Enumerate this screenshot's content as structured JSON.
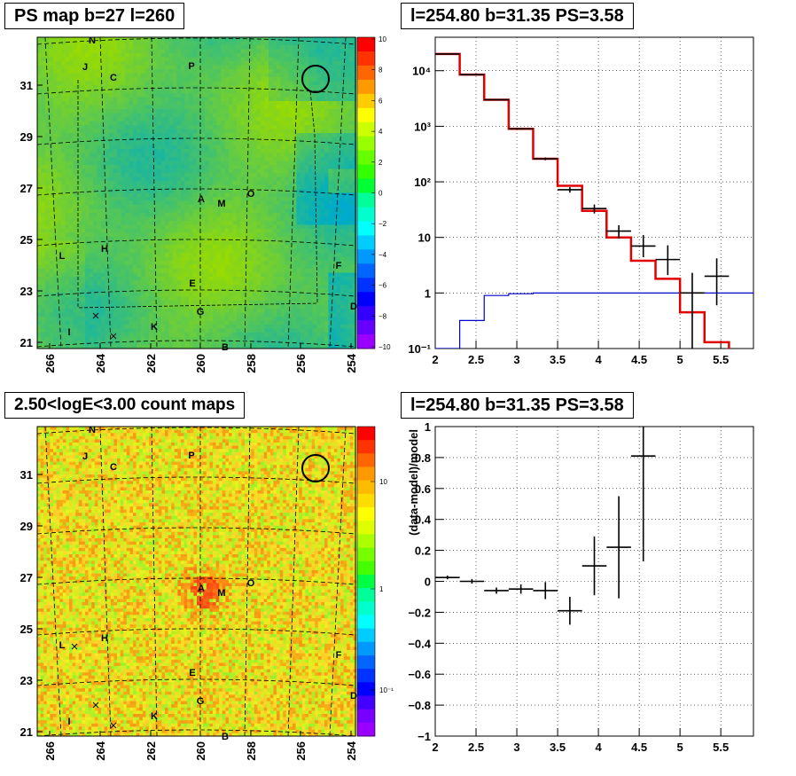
{
  "colors": {
    "fit_red": "#e00000",
    "background_blue": "#0000cc",
    "data_black": "#000000"
  },
  "chart_data": [
    {
      "type": "heatmap",
      "title": "PS map b=27 l=260",
      "x_ticks": [
        "266",
        "264",
        "262",
        "260",
        "258",
        "256",
        "254"
      ],
      "y_ticks": [
        "31",
        "29",
        "27",
        "25",
        "23",
        "21"
      ],
      "colorbar_ticks": [
        "10",
        "8",
        "6",
        "4",
        "2",
        "0",
        "−2",
        "−4",
        "−6",
        "−8",
        "−10"
      ],
      "source_labels": [
        "N",
        "J",
        "C",
        "P",
        "A",
        "M",
        "O",
        "L",
        "H",
        "F",
        "E",
        "D",
        "G",
        "I",
        "K",
        "B"
      ]
    },
    {
      "type": "line",
      "title": "l=254.80 b=31.35 PS=3.58",
      "yscale": "log",
      "xlim": [
        2,
        5.9
      ],
      "ylim": [
        0.1,
        40000
      ],
      "x_ticks": [
        "2",
        "2.5",
        "3",
        "3.5",
        "4",
        "4.5",
        "5",
        "5.5"
      ],
      "y_ticks": [
        "10⁴",
        "10³",
        "10²",
        "10",
        "1",
        "10⁻¹"
      ],
      "bin_edges": [
        2.0,
        2.3,
        2.6,
        2.9,
        3.2,
        3.5,
        3.8,
        4.1,
        4.4,
        4.7,
        5.0,
        5.3,
        5.6
      ],
      "series": [
        {
          "values": [
            20000,
            8500,
            3000,
            900,
            260,
            85,
            30,
            10,
            3.8,
            1.8,
            0.45,
            0.13
          ]
        },
        {
          "values": [
            0.1,
            0.32,
            0.9,
            0.97,
            1,
            1,
            1,
            1,
            1,
            1,
            1,
            1
          ]
        }
      ],
      "data_points": [
        {
          "x": 2.15,
          "y": 20000,
          "yerr_lo": 19500,
          "yerr_hi": 20500
        },
        {
          "x": 2.45,
          "y": 8500,
          "yerr_lo": 8300,
          "yerr_hi": 8700
        },
        {
          "x": 2.75,
          "y": 3000,
          "yerr_lo": 2900,
          "yerr_hi": 3100
        },
        {
          "x": 3.05,
          "y": 900,
          "yerr_lo": 860,
          "yerr_hi": 940
        },
        {
          "x": 3.35,
          "y": 260,
          "yerr_lo": 245,
          "yerr_hi": 275
        },
        {
          "x": 3.65,
          "y": 72,
          "yerr_lo": 64,
          "yerr_hi": 80
        },
        {
          "x": 3.95,
          "y": 33,
          "yerr_lo": 27,
          "yerr_hi": 39
        },
        {
          "x": 4.25,
          "y": 13,
          "yerr_lo": 9.5,
          "yerr_hi": 16.5
        },
        {
          "x": 4.55,
          "y": 7,
          "yerr_lo": 4.4,
          "yerr_hi": 11
        },
        {
          "x": 4.85,
          "y": 4,
          "yerr_lo": 2.1,
          "yerr_hi": 7.2
        },
        {
          "x": 5.15,
          "y": 1,
          "yerr_lo": 0.1,
          "yerr_hi": 2.3
        },
        {
          "x": 5.45,
          "y": 2,
          "yerr_lo": 0.6,
          "yerr_hi": 4.2
        }
      ]
    },
    {
      "type": "heatmap",
      "title": "2.50<logE<3.00 count maps",
      "x_ticks": [
        "266",
        "264",
        "262",
        "260",
        "258",
        "256",
        "254"
      ],
      "y_ticks": [
        "31",
        "29",
        "27",
        "25",
        "23",
        "21"
      ],
      "colorbar_ticks": [
        "10",
        "1",
        "10⁻¹"
      ],
      "source_labels": [
        "N",
        "J",
        "C",
        "P",
        "A",
        "M",
        "O",
        "L",
        "H",
        "F",
        "E",
        "D",
        "G",
        "I",
        "K",
        "B"
      ]
    },
    {
      "type": "scatter",
      "title": "l=254.80 b=31.35 PS=3.58",
      "ylabel": "(data-model)/model",
      "xlim": [
        2,
        5.9
      ],
      "ylim": [
        -1,
        1
      ],
      "x_ticks": [
        "2",
        "2.5",
        "3",
        "3.5",
        "4",
        "4.5",
        "5",
        "5.5"
      ],
      "y_ticks": [
        "1",
        "0.8",
        "0.6",
        "0.4",
        "0.2",
        "0",
        "−0.2",
        "−0.4",
        "−0.6",
        "−0.8",
        "−1"
      ],
      "data_points": [
        {
          "x": 2.15,
          "y": 0.025,
          "yerr": 0.012
        },
        {
          "x": 2.45,
          "y": 0.0,
          "yerr": 0.015
        },
        {
          "x": 2.75,
          "y": -0.06,
          "yerr": 0.02
        },
        {
          "x": 3.05,
          "y": -0.05,
          "yerr": 0.03
        },
        {
          "x": 3.35,
          "y": -0.06,
          "yerr": 0.055
        },
        {
          "x": 3.65,
          "y": -0.19,
          "yerr": 0.09
        },
        {
          "x": 3.95,
          "y": 0.1,
          "yerr": 0.19
        },
        {
          "x": 4.25,
          "y": 0.22,
          "yerr": 0.33
        },
        {
          "x": 4.55,
          "y": 0.81,
          "yerr": 0.68
        }
      ]
    }
  ]
}
